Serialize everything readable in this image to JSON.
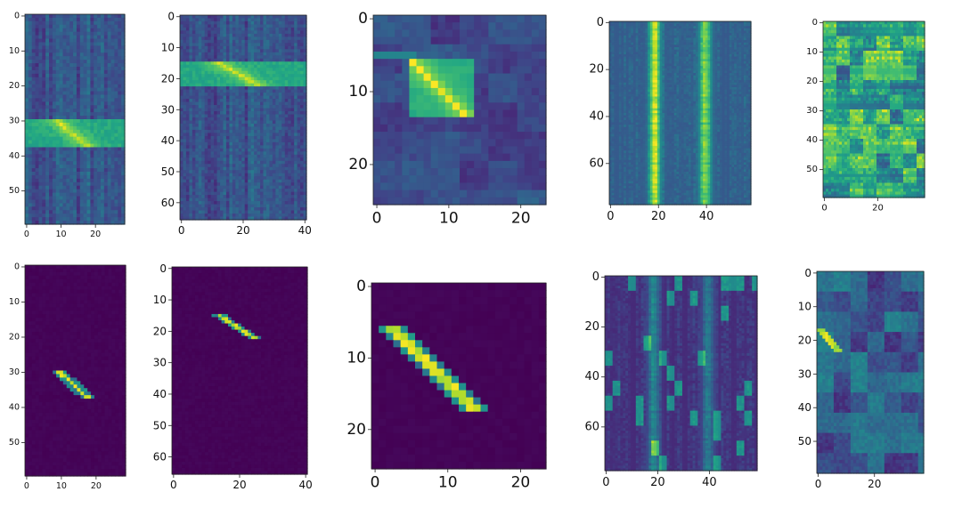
{
  "colormap": "viridis",
  "chart_data": [
    {
      "type": "heatmap",
      "rows": 60,
      "cols": 29,
      "yticks": [
        0,
        10,
        20,
        30,
        40,
        50
      ],
      "xticks": [
        0,
        10,
        20
      ],
      "pattern": "band-rows",
      "band": [
        30,
        37
      ]
    },
    {
      "type": "heatmap",
      "rows": 66,
      "cols": 41,
      "yticks": [
        0,
        10,
        20,
        30,
        40,
        50,
        60
      ],
      "xticks": [
        0,
        20,
        40
      ],
      "pattern": "band-rows",
      "band": [
        15,
        22
      ]
    },
    {
      "type": "heatmap",
      "rows": 26,
      "cols": 24,
      "yticks": [
        0,
        10,
        20
      ],
      "xticks": [
        0,
        10,
        20
      ],
      "pattern": "block",
      "band": [
        6,
        13
      ]
    },
    {
      "type": "heatmap",
      "rows": 78,
      "cols": 59,
      "yticks": [
        0,
        20,
        40,
        60
      ],
      "xticks": [
        0,
        20,
        40
      ],
      "pattern": "columns",
      "band": [
        16,
        22
      ]
    },
    {
      "type": "heatmap",
      "rows": 60,
      "cols": 38,
      "yticks": [
        0,
        10,
        20,
        30,
        40,
        50
      ],
      "xticks": [
        0,
        20
      ],
      "pattern": "mottled",
      "band": [
        0,
        0
      ]
    },
    {
      "type": "heatmap",
      "rows": 60,
      "cols": 29,
      "yticks": [
        0,
        10,
        20,
        30,
        40,
        50
      ],
      "xticks": [
        0,
        10,
        20
      ],
      "pattern": "diagonal",
      "band": [
        30,
        37
      ]
    },
    {
      "type": "heatmap",
      "rows": 66,
      "cols": 41,
      "yticks": [
        0,
        10,
        20,
        30,
        40,
        50,
        60
      ],
      "xticks": [
        0,
        20,
        40
      ],
      "pattern": "diagonal",
      "band": [
        15,
        22
      ]
    },
    {
      "type": "heatmap",
      "rows": 26,
      "cols": 24,
      "yticks": [
        0,
        10,
        20
      ],
      "xticks": [
        0,
        10,
        20
      ],
      "pattern": "diagonal-wide",
      "band": [
        6,
        17
      ]
    },
    {
      "type": "heatmap",
      "rows": 78,
      "cols": 59,
      "yticks": [
        0,
        20,
        40,
        60
      ],
      "xticks": [
        0,
        20,
        40
      ],
      "pattern": "columns-dark",
      "band": [
        16,
        22
      ]
    },
    {
      "type": "heatmap",
      "rows": 60,
      "cols": 38,
      "yticks": [
        0,
        10,
        20,
        30,
        40,
        50
      ],
      "xticks": [
        0,
        20
      ],
      "pattern": "patchy",
      "band": [
        17,
        23
      ]
    }
  ]
}
